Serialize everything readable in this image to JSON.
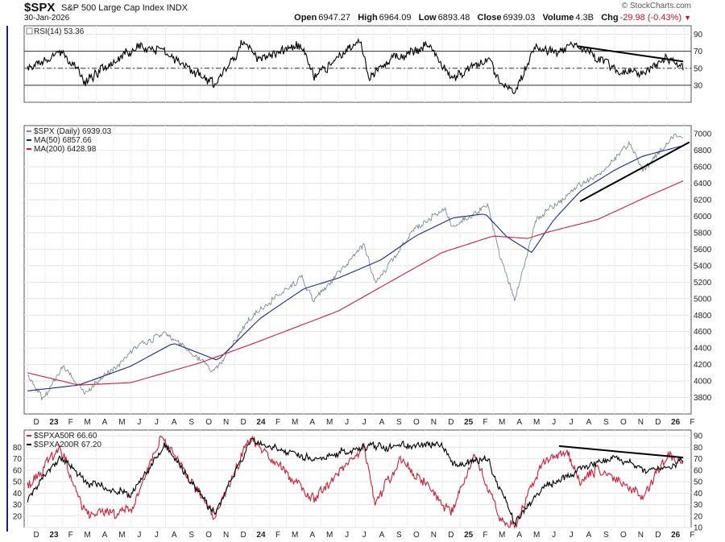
{
  "header": {
    "symbol": "$SPX",
    "name": "S&P 500 Large Cap Index",
    "exchange": "INDX",
    "date": "30-Jan-2026",
    "watermark": "© StockCharts.com",
    "open_label": "Open",
    "open": "6947.27",
    "high_label": "High",
    "high": "6964.09",
    "low_label": "Low",
    "low": "6893.48",
    "close_label": "Close",
    "close": "6939.03",
    "volume_label": "Volume",
    "volume": "4.3B",
    "chg_label": "Chg",
    "chg": "-29.98 (-0.43%)",
    "chg_color": "#c0142c"
  },
  "chart_data": [
    {
      "type": "line",
      "panel": "rsi",
      "legend": [
        "RSI(14) 53.36"
      ],
      "ylim": [
        10,
        100
      ],
      "y_ticks": [
        90,
        70,
        50,
        30
      ],
      "reference_lines": [
        70,
        50,
        30
      ],
      "series": [
        {
          "name": "RSI(14)",
          "color": "#000000",
          "x": [
            "2022-12-01",
            "2023-02-01",
            "2023-03-13",
            "2023-06-15",
            "2023-08-01",
            "2023-10-27",
            "2023-12-20",
            "2024-01-10",
            "2024-03-28",
            "2024-04-19",
            "2024-07-10",
            "2024-07-25",
            "2024-09-06",
            "2024-11-11",
            "2024-12-18",
            "2025-02-19",
            "2025-03-10",
            "2025-04-08",
            "2025-05-12",
            "2025-06-30",
            "2025-07-28",
            "2025-10-10",
            "2025-11-20",
            "2026-01-05",
            "2026-01-30"
          ],
          "y": [
            50,
            68,
            35,
            76,
            68,
            30,
            82,
            60,
            78,
            40,
            82,
            38,
            64,
            76,
            38,
            62,
            36,
            21,
            72,
            70,
            76,
            48,
            42,
            62,
            53
          ]
        }
      ],
      "trendlines": [
        {
          "from": [
            "2025-07-28",
            76
          ],
          "to": [
            "2026-01-30",
            58
          ],
          "color": "#000000"
        }
      ]
    },
    {
      "type": "line",
      "panel": "price",
      "legend": [
        "$SPX (Daily) 6939.03",
        "MA(50) 6857.66",
        "MA(200) 6428.98"
      ],
      "ylim": [
        3600,
        7100
      ],
      "y_ticks": [
        7000,
        6800,
        6600,
        6400,
        6200,
        6000,
        5800,
        5600,
        5400,
        5200,
        5000,
        4800,
        4600,
        4400,
        4200,
        4000,
        3800
      ],
      "x_ticks": [
        "D",
        "23",
        "F",
        "M",
        "A",
        "M",
        "J",
        "J",
        "A",
        "S",
        "O",
        "N",
        "D",
        "24",
        "F",
        "M",
        "A",
        "M",
        "J",
        "J",
        "A",
        "S",
        "O",
        "N",
        "D",
        "25",
        "F",
        "M",
        "A",
        "M",
        "J",
        "J",
        "A",
        "S",
        "O",
        "N",
        "D",
        "26",
        "F"
      ],
      "series": [
        {
          "name": "$SPX",
          "color": "#7d8a8f",
          "x": [
            "2022-12-01",
            "2022-12-28",
            "2023-02-02",
            "2023-03-13",
            "2023-06-15",
            "2023-07-31",
            "2023-10-27",
            "2023-12-29",
            "2024-03-28",
            "2024-04-19",
            "2024-07-16",
            "2024-08-05",
            "2024-10-15",
            "2024-12-06",
            "2024-12-20",
            "2025-02-19",
            "2025-03-13",
            "2025-04-08",
            "2025-05-16",
            "2025-07-31",
            "2025-08-29",
            "2025-10-28",
            "2025-11-20",
            "2026-01-12",
            "2026-01-30"
          ],
          "y": [
            4080,
            3780,
            4180,
            3850,
            4430,
            4590,
            4120,
            4770,
            5250,
            4970,
            5670,
            5190,
            5860,
            6090,
            5860,
            6140,
            5520,
            4980,
            5950,
            6390,
            6460,
            6890,
            6540,
            6980,
            6939
          ]
        },
        {
          "name": "MA(50)",
          "color": "#1b2b78",
          "x": [
            "2022-12-01",
            "2023-03-01",
            "2023-06-01",
            "2023-08-15",
            "2023-11-01",
            "2024-01-15",
            "2024-04-01",
            "2024-06-01",
            "2024-08-15",
            "2024-10-15",
            "2024-12-20",
            "2025-02-15",
            "2025-03-25",
            "2025-05-08",
            "2025-06-15",
            "2025-08-01",
            "2025-10-01",
            "2025-11-20",
            "2026-01-30"
          ],
          "y": [
            3880,
            3950,
            4180,
            4460,
            4250,
            4760,
            5120,
            5250,
            5470,
            5760,
            5980,
            6030,
            5750,
            5560,
            5950,
            6300,
            6560,
            6730,
            6858
          ]
        },
        {
          "name": "MA(200)",
          "color": "#c8213f",
          "x": [
            "2022-12-01",
            "2023-03-01",
            "2023-06-01",
            "2023-10-01",
            "2024-01-01",
            "2024-06-01",
            "2024-12-01",
            "2025-03-01",
            "2025-05-01",
            "2025-06-01",
            "2025-09-01",
            "2025-12-01",
            "2026-01-30"
          ],
          "y": [
            4100,
            3950,
            3980,
            4220,
            4450,
            4850,
            5560,
            5760,
            5730,
            5800,
            5960,
            6250,
            6429
          ]
        }
      ],
      "trendlines": [
        {
          "from": [
            "2025-08-01",
            6180
          ],
          "to": [
            "2026-02-10",
            6900
          ],
          "color": "#000000"
        }
      ]
    },
    {
      "type": "line",
      "panel": "breadth",
      "legend": [
        "$SPXA50R 66.60",
        "$SPXA200R 67.20"
      ],
      "ylim": [
        10,
        95
      ],
      "y_ticks_left": [
        80,
        70,
        60,
        50,
        40,
        30,
        20
      ],
      "y_ticks_right": [
        90,
        80,
        70,
        60,
        50,
        40,
        30,
        20,
        10
      ],
      "x_ticks": [
        "D",
        "23",
        "F",
        "M",
        "A",
        "M",
        "J",
        "J",
        "A",
        "S",
        "O",
        "N",
        "D",
        "24",
        "F",
        "M",
        "A",
        "M",
        "J",
        "J",
        "A",
        "S",
        "O",
        "N",
        "D",
        "25",
        "F",
        "M",
        "A",
        "M",
        "J",
        "J",
        "A",
        "S",
        "O",
        "N",
        "D",
        "26",
        "F"
      ],
      "series": [
        {
          "name": "$SPXA50R",
          "color": "#c8213f",
          "x": [
            "2022-12-01",
            "2023-01-26",
            "2023-03-13",
            "2023-05-31",
            "2023-07-27",
            "2023-10-27",
            "2023-12-27",
            "2024-04-19",
            "2024-07-16",
            "2024-08-05",
            "2024-09-19",
            "2024-12-18",
            "2025-01-27",
            "2025-03-13",
            "2025-04-08",
            "2025-05-30",
            "2025-07-10",
            "2025-08-01",
            "2025-09-01",
            "2025-11-20",
            "2026-01-05",
            "2026-01-30"
          ],
          "y": [
            45,
            80,
            22,
            25,
            90,
            18,
            88,
            35,
            82,
            30,
            70,
            22,
            72,
            18,
            12,
            68,
            75,
            50,
            62,
            38,
            75,
            66.6
          ]
        },
        {
          "name": "$SPXA200R",
          "color": "#000000",
          "x": [
            "2022-12-01",
            "2023-01-27",
            "2023-03-15",
            "2023-05-31",
            "2023-07-31",
            "2023-10-27",
            "2023-12-29",
            "2024-04-19",
            "2024-07-18",
            "2024-11-29",
            "2024-12-20",
            "2025-02-19",
            "2025-04-08",
            "2025-05-30",
            "2025-07-31",
            "2025-10-01",
            "2025-11-20",
            "2026-01-30"
          ],
          "y": [
            35,
            72,
            50,
            38,
            82,
            22,
            85,
            70,
            80,
            82,
            64,
            70,
            14,
            45,
            60,
            73,
            60,
            67.2
          ]
        }
      ],
      "trendlines": [
        {
          "from": [
            "2025-06-25",
            81
          ],
          "to": [
            "2026-01-30",
            71
          ],
          "color": "#000000"
        }
      ]
    }
  ]
}
